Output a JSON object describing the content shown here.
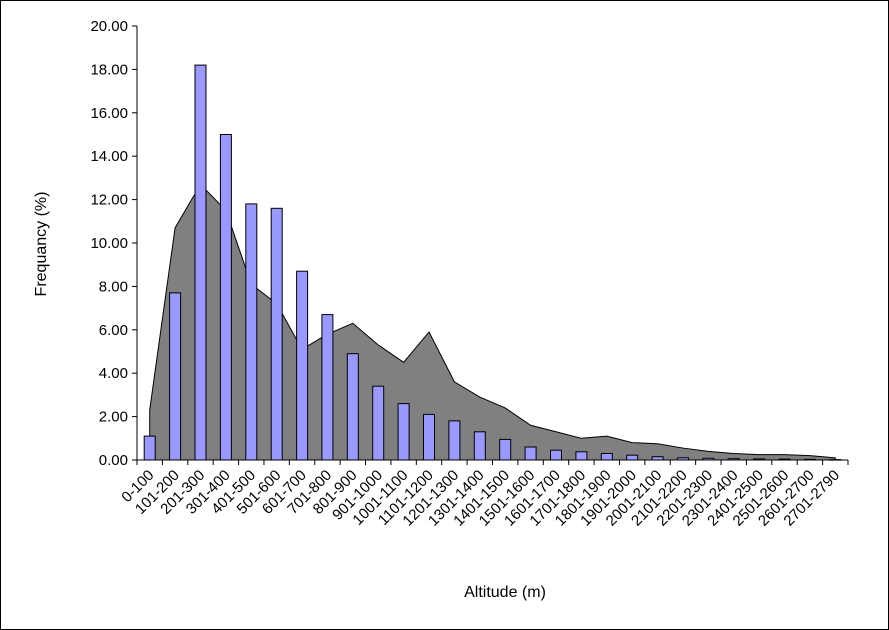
{
  "chart_data": {
    "type": "bar",
    "title": "",
    "xlabel": "Altitude (m)",
    "ylabel": "Frequancy (%)",
    "ylim": [
      0,
      20
    ],
    "yticks": [
      "0.00",
      "2.00",
      "4.00",
      "6.00",
      "8.00",
      "10.00",
      "12.00",
      "14.00",
      "16.00",
      "18.00",
      "20.00"
    ],
    "grid": false,
    "legend": "none",
    "categories": [
      "0-100",
      "101-200",
      "201-300",
      "301-400",
      "401-500",
      "501-600",
      "601-700",
      "701-800",
      "801-900",
      "901-1000",
      "1001-1100",
      "1101-1200",
      "1201-1300",
      "1301-1400",
      "1401-1500",
      "1501-1600",
      "1601-1700",
      "1701-1800",
      "1801-1900",
      "1901-2000",
      "2001-2100",
      "2101-2200",
      "2201-2300",
      "2301-2400",
      "2401-2500",
      "2501-2600",
      "2601-2700",
      "2701-2790"
    ],
    "series": [
      {
        "kind": "bar",
        "color": "#9999ff",
        "values": [
          1.1,
          7.7,
          18.2,
          15.0,
          11.8,
          11.6,
          8.7,
          6.7,
          4.9,
          3.4,
          2.6,
          2.1,
          1.8,
          1.3,
          0.95,
          0.6,
          0.45,
          0.38,
          0.3,
          0.22,
          0.15,
          0.1,
          0.08,
          0.06,
          0.05,
          0.04,
          0.03,
          0.02
        ]
      },
      {
        "kind": "area",
        "color": "#808080",
        "values": [
          2.3,
          10.7,
          12.7,
          11.5,
          8.1,
          7.2,
          5.1,
          5.8,
          6.3,
          5.3,
          4.5,
          5.9,
          3.6,
          2.9,
          2.4,
          1.6,
          1.3,
          1.0,
          1.1,
          0.8,
          0.75,
          0.55,
          0.4,
          0.3,
          0.25,
          0.25,
          0.2,
          0.1
        ]
      }
    ]
  }
}
